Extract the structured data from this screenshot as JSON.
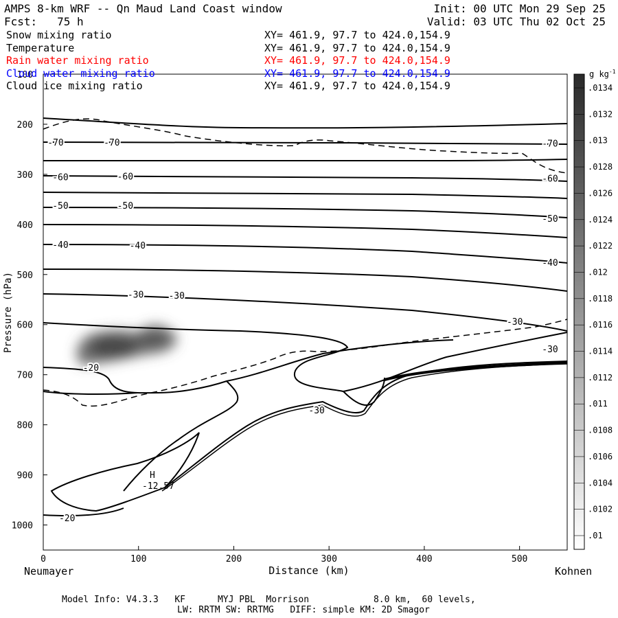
{
  "header": {
    "title": "AMPS 8-km WRF -- Qn Maud Land Coast window",
    "init": "Init: 00 UTC Mon 29 Sep 25",
    "fcst": "Fcst:   75 h",
    "valid": "Valid: 03 UTC Thu 02 Oct 25"
  },
  "fields": [
    {
      "name": "Snow mixing ratio",
      "xy": "XY= 461.9, 97.7 to 424.0,154.9",
      "color": "#000000"
    },
    {
      "name": "Temperature",
      "xy": "XY= 461.9, 97.7 to 424.0,154.9",
      "color": "#000000"
    },
    {
      "name": "Rain water mixing ratio",
      "xy": "XY= 461.9, 97.7 to 424.0,154.9",
      "color": "#ff0000"
    },
    {
      "name": "Cloud water mixing ratio",
      "xy": "XY= 461.9, 97.7 to 424.0,154.9",
      "color": "#0000ff"
    },
    {
      "name": "Cloud ice mixing ratio",
      "xy": "XY= 461.9, 97.7 to 424.0,154.9",
      "color": "#000000"
    }
  ],
  "footer": {
    "line1": "Model Info: V4.3.3   KF      MYJ PBL  Morrison            8.0 km,  60 levels,",
    "line2": "LW: RRTM SW: RRTMG   DIFF: simple KM: 2D Smagor"
  },
  "chart_data": {
    "type": "cross-section contour",
    "xlabel": "Distance (km)",
    "ylabel": "Pressure (hPa)",
    "xlim": [
      0,
      550
    ],
    "ylim": [
      1050,
      100
    ],
    "x_ticks": [
      0,
      100,
      200,
      300,
      400,
      500
    ],
    "y_ticks": [
      100,
      200,
      300,
      400,
      500,
      600,
      700,
      800,
      900,
      1000
    ],
    "left_endpoint": "Neumayer",
    "right_endpoint": "Kohnen",
    "colorbar_unit": "g kg",
    "colorbar_unit_exp": "-1",
    "colorbar_labels": [
      ".01",
      ".0102",
      ".0104",
      ".0106",
      ".0108",
      ".011",
      ".0112",
      ".0114",
      ".0116",
      ".0118",
      ".012",
      ".0122",
      ".0124",
      ".0126",
      ".0128",
      ".013",
      ".0132",
      ".0134"
    ],
    "contour_labels": [
      {
        "text": "-70",
        "x": 13,
        "p": 237
      },
      {
        "text": "-70",
        "x": 72,
        "p": 237
      },
      {
        "text": "-70",
        "x": 532,
        "p": 239
      },
      {
        "text": "-60",
        "x": 18,
        "p": 306
      },
      {
        "text": "-60",
        "x": 86,
        "p": 305
      },
      {
        "text": "-60",
        "x": 532,
        "p": 309
      },
      {
        "text": "-50",
        "x": 18,
        "p": 363
      },
      {
        "text": "-50",
        "x": 86,
        "p": 363
      },
      {
        "text": "-50",
        "x": 532,
        "p": 389
      },
      {
        "text": "-40",
        "x": 18,
        "p": 441
      },
      {
        "text": "-40",
        "x": 99,
        "p": 443
      },
      {
        "text": "-40",
        "x": 532,
        "p": 477
      },
      {
        "text": "-30",
        "x": 97,
        "p": 541
      },
      {
        "text": "-30",
        "x": 140,
        "p": 543
      },
      {
        "text": "-30",
        "x": 495,
        "p": 595
      },
      {
        "text": "-30",
        "x": 532,
        "p": 650
      },
      {
        "text": "-30",
        "x": 287,
        "p": 772
      },
      {
        "text": "-20",
        "x": 50,
        "p": 687
      },
      {
        "text": "-20",
        "x": 25,
        "p": 987
      }
    ],
    "max_marker": {
      "label": "H",
      "value": "-12.57",
      "x": 113,
      "p": 903
    }
  }
}
